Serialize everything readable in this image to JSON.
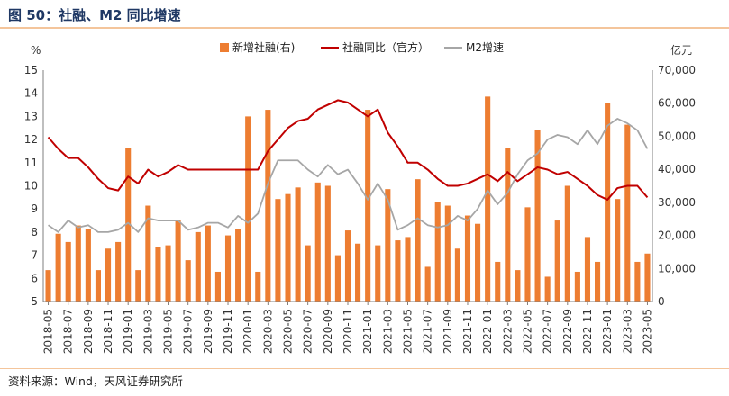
{
  "figure": {
    "title": "图 50：社融、M2 同比增速",
    "source": "资料来源：Wind，天风证券研究所"
  },
  "colors": {
    "bar": "#ed7d31",
    "line_tsf": "#c00000",
    "line_m2": "#a6a6a6",
    "title": "#1f3864",
    "rule": "#f4c59b"
  },
  "chart_data": {
    "type": "bar",
    "title": "",
    "left_unit": "%",
    "right_unit": "亿元",
    "left_ylim": [
      5,
      15
    ],
    "left_yticks": [
      5,
      6,
      7,
      8,
      9,
      10,
      11,
      12,
      13,
      14,
      15
    ],
    "right_ylim": [
      0,
      70000
    ],
    "right_yticks": [
      0,
      10000,
      20000,
      30000,
      40000,
      50000,
      60000,
      70000
    ],
    "right_ytick_labels": [
      "0",
      "10,000",
      "20,000",
      "30,000",
      "40,000",
      "50,000",
      "60,000",
      "70,000"
    ],
    "x_tick_labels": [
      "2018-05",
      "2018-07",
      "2018-09",
      "2018-11",
      "2019-01",
      "2019-03",
      "2019-05",
      "2019-07",
      "2019-09",
      "2019-11",
      "2020-01",
      "2020-03",
      "2020-05",
      "2020-07",
      "2020-09",
      "2020-11",
      "2021-01",
      "2021-03",
      "2021-05",
      "2021-07",
      "2021-09",
      "2021-11",
      "2022-01",
      "2022-03",
      "2022-05",
      "2022-07",
      "2022-09",
      "2022-11",
      "2023-01",
      "2023-03",
      "2023-05"
    ],
    "grid": false,
    "legend_position": "top",
    "months": [
      "2018-05",
      "2018-06",
      "2018-07",
      "2018-08",
      "2018-09",
      "2018-10",
      "2018-11",
      "2018-12",
      "2019-01",
      "2019-02",
      "2019-03",
      "2019-04",
      "2019-05",
      "2019-06",
      "2019-07",
      "2019-08",
      "2019-09",
      "2019-10",
      "2019-11",
      "2019-12",
      "2020-01",
      "2020-02",
      "2020-03",
      "2020-04",
      "2020-05",
      "2020-06",
      "2020-07",
      "2020-08",
      "2020-09",
      "2020-10",
      "2020-11",
      "2020-12",
      "2021-01",
      "2021-02",
      "2021-03",
      "2021-04",
      "2021-05",
      "2021-06",
      "2021-07",
      "2021-08",
      "2021-09",
      "2021-10",
      "2021-11",
      "2021-12",
      "2022-01",
      "2022-02",
      "2022-03",
      "2022-04",
      "2022-05",
      "2022-06",
      "2022-07",
      "2022-08",
      "2022-09",
      "2022-10",
      "2022-11",
      "2022-12",
      "2023-01",
      "2023-02",
      "2023-03",
      "2023-04",
      "2023-05"
    ],
    "series": [
      {
        "name": "新增社融(右)",
        "kind": "bar",
        "axis": "right",
        "values": [
          9500,
          20500,
          18000,
          23000,
          22000,
          9500,
          16000,
          18000,
          46500,
          9500,
          29000,
          16500,
          17000,
          24500,
          12500,
          21000,
          23000,
          9000,
          20000,
          22000,
          56000,
          9000,
          58000,
          31000,
          32500,
          34500,
          17000,
          36000,
          35000,
          14000,
          21500,
          17500,
          58000,
          17000,
          34000,
          18500,
          19500,
          37000,
          10500,
          30000,
          29000,
          16000,
          26000,
          23500,
          62000,
          12000,
          46500,
          9500,
          28500,
          52000,
          7500,
          24500,
          35000,
          9000,
          19500,
          12000,
          60000,
          31000,
          53500,
          12000,
          14500
        ]
      },
      {
        "name": "社融同比（官方）",
        "kind": "line",
        "axis": "left",
        "values": [
          12.1,
          11.6,
          11.2,
          11.2,
          10.8,
          10.3,
          9.9,
          9.8,
          10.4,
          10.1,
          10.7,
          10.4,
          10.6,
          10.9,
          10.7,
          10.7,
          10.7,
          10.7,
          10.7,
          10.7,
          10.7,
          10.7,
          11.5,
          12.0,
          12.5,
          12.8,
          12.9,
          13.3,
          13.5,
          13.7,
          13.6,
          13.3,
          13.0,
          13.3,
          12.3,
          11.7,
          11.0,
          11.0,
          10.7,
          10.3,
          10.0,
          10.0,
          10.1,
          10.3,
          10.5,
          10.2,
          10.6,
          10.2,
          10.5,
          10.8,
          10.7,
          10.5,
          10.6,
          10.3,
          10.0,
          9.6,
          9.4,
          9.9,
          10.0,
          10.0,
          9.5
        ]
      },
      {
        "name": "M2增速",
        "kind": "line",
        "axis": "left",
        "values": [
          8.3,
          8.0,
          8.5,
          8.2,
          8.3,
          8.0,
          8.0,
          8.1,
          8.4,
          8.0,
          8.6,
          8.5,
          8.5,
          8.5,
          8.1,
          8.2,
          8.4,
          8.4,
          8.2,
          8.7,
          8.4,
          8.8,
          10.1,
          11.1,
          11.1,
          11.1,
          10.7,
          10.4,
          10.9,
          10.5,
          10.7,
          10.1,
          9.4,
          10.1,
          9.4,
          8.1,
          8.3,
          8.6,
          8.3,
          8.2,
          8.3,
          8.7,
          8.5,
          9.0,
          9.8,
          9.2,
          9.7,
          10.5,
          11.1,
          11.4,
          12.0,
          12.2,
          12.1,
          11.8,
          12.4,
          11.8,
          12.6,
          12.9,
          12.7,
          12.4,
          11.6
        ]
      }
    ]
  }
}
